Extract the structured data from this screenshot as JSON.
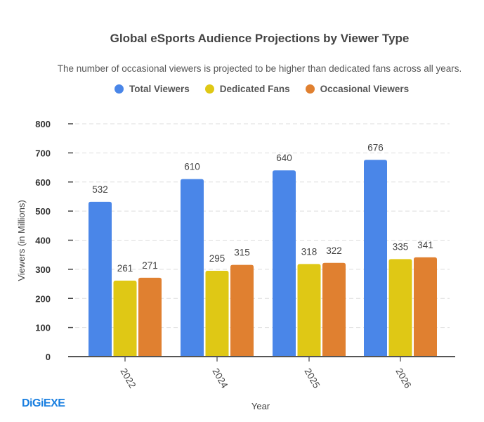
{
  "chart_data": {
    "type": "bar",
    "title": "Global eSports Audience Projections by Viewer Type",
    "subtitle": "The number of occasional viewers is projected to be higher than dedicated fans across all years.",
    "xlabel": "Year",
    "ylabel": "Viewers (in Millions)",
    "ylim": [
      0,
      800
    ],
    "yticks": [
      0,
      100,
      200,
      300,
      400,
      500,
      600,
      700,
      800
    ],
    "grid": true,
    "legend_position": "top",
    "categories": [
      "2022",
      "2024",
      "2025",
      "2026"
    ],
    "series": [
      {
        "name": "Total Viewers",
        "color": "#4a86e8",
        "values": [
          532,
          610,
          640,
          676
        ]
      },
      {
        "name": "Dedicated Fans",
        "color": "#dfc815",
        "values": [
          261,
          295,
          318,
          335
        ]
      },
      {
        "name": "Occasional Viewers",
        "color": "#e08030",
        "values": [
          271,
          315,
          322,
          341
        ]
      }
    ]
  },
  "logo_text": "DiGiEXE"
}
